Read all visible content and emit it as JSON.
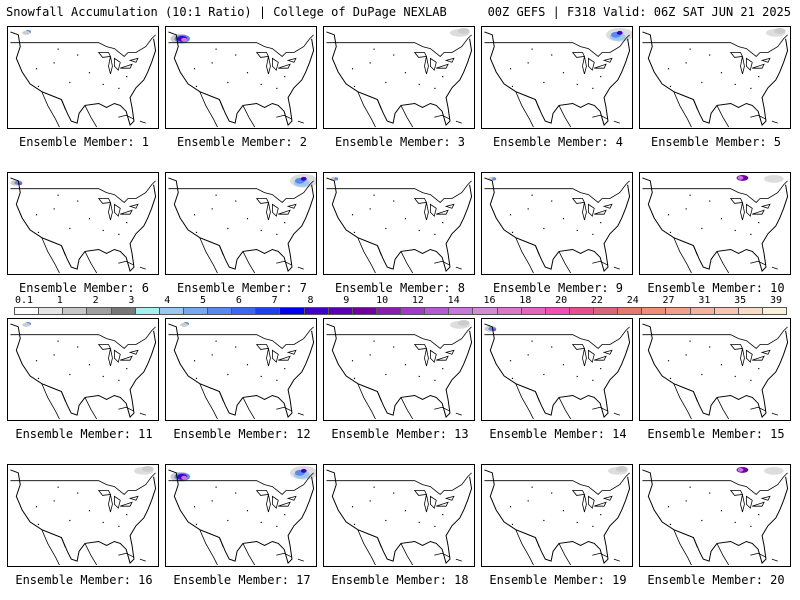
{
  "header": {
    "left": "Snowfall Accumulation (10:1 Ratio) | College of DuPage NEXLAB",
    "right": "00Z GEFS | F318 Valid: 06Z SAT JUN 21 2025"
  },
  "legend": {
    "labels": [
      "0.1",
      "1",
      "2",
      "3",
      "4",
      "5",
      "6",
      "7",
      "8",
      "9",
      "10",
      "12",
      "14",
      "16",
      "18",
      "20",
      "22",
      "24",
      "27",
      "31",
      "35",
      "39"
    ],
    "colors": [
      "#ffffff",
      "#e6e6e6",
      "#c8c8c8",
      "#a0a0a0",
      "#787878",
      "#a8f0f0",
      "#9cc8f0",
      "#78a8f0",
      "#5a88f0",
      "#3c68f0",
      "#1e40f0",
      "#0000f0",
      "#4000c8",
      "#5a00b4",
      "#7000a0",
      "#8a1eb4",
      "#a03cc8",
      "#b45ad2",
      "#c878dc",
      "#d28cd2",
      "#dc78c8",
      "#e664be",
      "#f050b4",
      "#e6508c",
      "#dc6478",
      "#e6786e",
      "#f08c78",
      "#f0a08c",
      "#f0b4a0",
      "#f5c8b4",
      "#f8dcc8",
      "#faf0dc"
    ]
  },
  "members": [
    {
      "label": "Ensemble Member: 1",
      "snow": "low"
    },
    {
      "label": "Ensemble Member: 2",
      "snow": "nw-heavy"
    },
    {
      "label": "Ensemble Member: 3",
      "snow": "ne-light"
    },
    {
      "label": "Ensemble Member: 4",
      "snow": "ne-heavy"
    },
    {
      "label": "Ensemble Member: 5",
      "snow": "ne-light"
    },
    {
      "label": "Ensemble Member: 6",
      "snow": "nw-medium"
    },
    {
      "label": "Ensemble Member: 7",
      "snow": "ne-heavy"
    },
    {
      "label": "Ensemble Member: 8",
      "snow": "nw-light"
    },
    {
      "label": "Ensemble Member: 9",
      "snow": "nw-light"
    },
    {
      "label": "Ensemble Member: 10",
      "snow": "ne-medium"
    },
    {
      "label": "Ensemble Member: 11",
      "snow": "low"
    },
    {
      "label": "Ensemble Member: 12",
      "snow": "low"
    },
    {
      "label": "Ensemble Member: 13",
      "snow": "ne-light"
    },
    {
      "label": "Ensemble Member: 14",
      "snow": "nw-medium"
    },
    {
      "label": "Ensemble Member: 15",
      "snow": "none"
    },
    {
      "label": "Ensemble Member: 16",
      "snow": "ne-light"
    },
    {
      "label": "Ensemble Member: 17",
      "snow": "both-heavy"
    },
    {
      "label": "Ensemble Member: 18",
      "snow": "none"
    },
    {
      "label": "Ensemble Member: 19",
      "snow": "ne-light"
    },
    {
      "label": "Ensemble Member: 20",
      "snow": "ne-medium"
    }
  ]
}
